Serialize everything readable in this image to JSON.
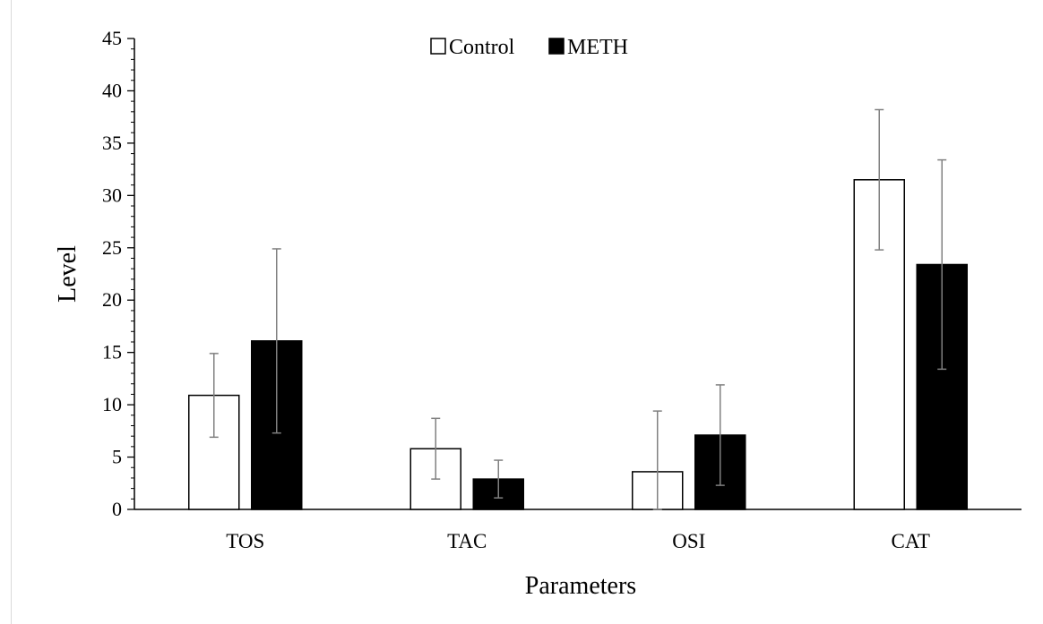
{
  "chart_data": {
    "type": "bar",
    "categories": [
      "TOS",
      "TAC",
      "OSI",
      "CAT"
    ],
    "series": [
      {
        "name": "Control",
        "values": [
          10.9,
          5.8,
          3.6,
          31.5
        ],
        "errors": [
          4.0,
          2.9,
          5.8,
          6.7
        ],
        "color": "#ffffff"
      },
      {
        "name": "METH",
        "values": [
          16.1,
          2.9,
          7.1,
          23.4
        ],
        "errors": [
          8.8,
          1.8,
          4.8,
          10.0
        ],
        "color": "#000000"
      }
    ],
    "xlabel": "Parameters",
    "ylabel": "Level",
    "ylim": [
      0,
      45
    ],
    "yticks": [
      "0",
      "5",
      "10",
      "15",
      "20",
      "25",
      "30",
      "35",
      "40",
      "45"
    ],
    "legend_position": "top-center",
    "grid": false
  }
}
